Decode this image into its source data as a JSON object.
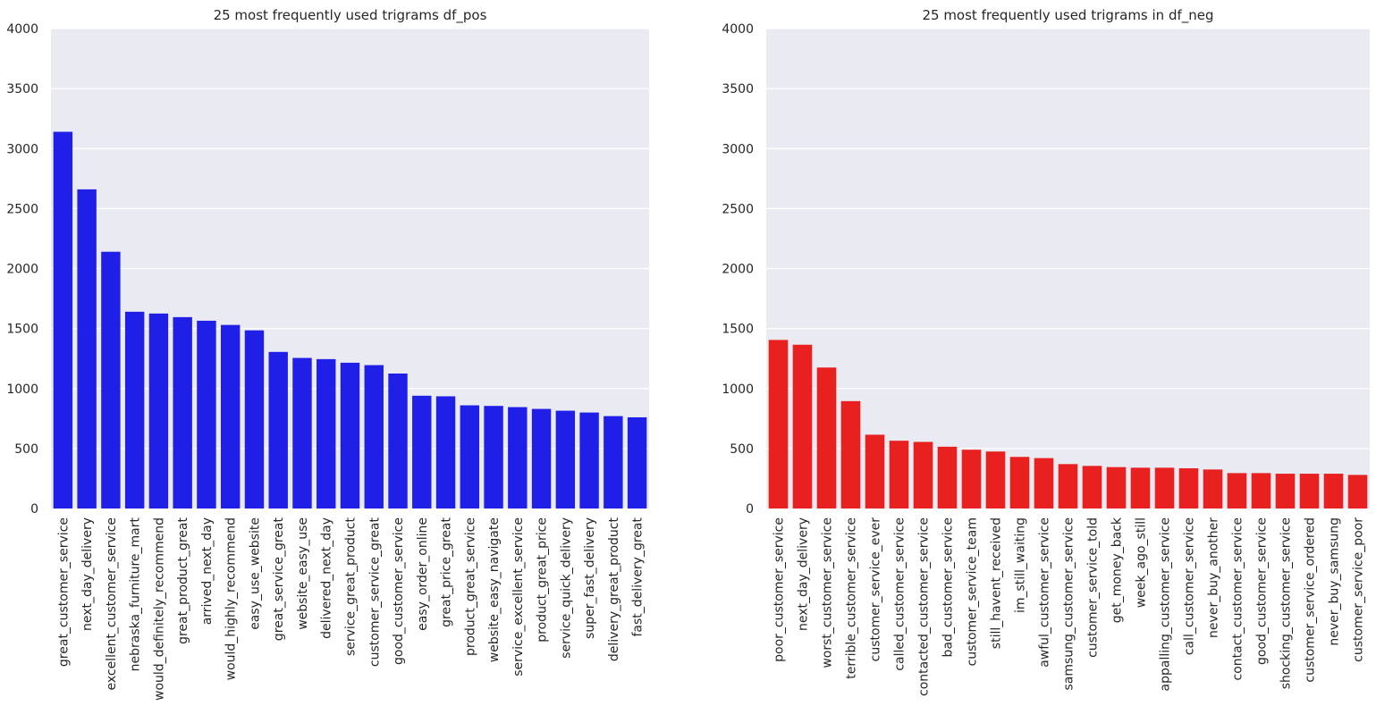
{
  "chart_data": [
    {
      "type": "bar",
      "title": "25 most frequently used trigrams df_pos",
      "xlabel": "",
      "ylabel": "",
      "ylim": [
        0,
        4000
      ],
      "yticks": [
        "0",
        "500",
        "1000",
        "1500",
        "2000",
        "2500",
        "3000",
        "3500",
        "4000"
      ],
      "grid": true,
      "color": "#1f1fe8",
      "categories": [
        "great_customer_service",
        "next_day_delivery",
        "excellent_customer_service",
        "nebraska_furniture_mart",
        "would_definitely_recommend",
        "great_product_great",
        "arrived_next_day",
        "would_highly_recommend",
        "easy_use_website",
        "great_service_great",
        "website_easy_use",
        "delivered_next_day",
        "service_great_product",
        "customer_service_great",
        "good_customer_service",
        "easy_order_online",
        "great_price_great",
        "product_great_service",
        "website_easy_navigate",
        "service_excellent_service",
        "product_great_price",
        "service_quick_delivery",
        "super_fast_delivery",
        "delivery_great_product",
        "fast_delivery_great"
      ],
      "values": [
        3140,
        2660,
        2140,
        1640,
        1625,
        1595,
        1565,
        1530,
        1485,
        1305,
        1255,
        1245,
        1215,
        1195,
        1125,
        940,
        935,
        860,
        855,
        845,
        830,
        815,
        800,
        770,
        760
      ]
    },
    {
      "type": "bar",
      "title": "25 most frequently used trigrams in df_neg",
      "xlabel": "",
      "ylabel": "",
      "ylim": [
        0,
        4000
      ],
      "yticks": [
        "0",
        "500",
        "1000",
        "1500",
        "2000",
        "2500",
        "3000",
        "3500",
        "4000"
      ],
      "grid": true,
      "color": "#e82020",
      "categories": [
        "poor_customer_service",
        "next_day_delivery",
        "worst_customer_service",
        "terrible_customer_service",
        "customer_service_ever",
        "called_customer_service",
        "contacted_customer_service",
        "bad_customer_service",
        "customer_service_team",
        "still_havent_received",
        "im_still_waiting",
        "awful_customer_service",
        "samsung_customer_service",
        "customer_service_told",
        "get_money_back",
        "week_ago_still",
        "appalling_customer_service",
        "call_customer_service",
        "never_buy_another",
        "contact_customer_service",
        "good_customer_service",
        "shocking_customer_service",
        "customer_service_ordered",
        "never_buy_samsung",
        "customer_service_poor"
      ],
      "values": [
        1405,
        1365,
        1175,
        895,
        615,
        565,
        555,
        515,
        490,
        475,
        430,
        420,
        370,
        355,
        345,
        340,
        340,
        335,
        325,
        295,
        295,
        290,
        290,
        290,
        280
      ]
    }
  ]
}
